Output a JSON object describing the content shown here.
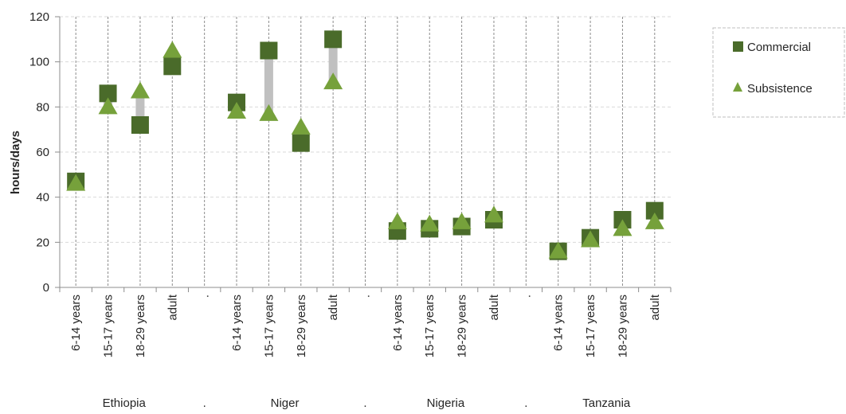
{
  "chart_data": {
    "type": "scatter",
    "ylabel": "hours/days",
    "ylim": [
      0,
      120
    ],
    "yticks": [
      0,
      20,
      40,
      60,
      80,
      100,
      120
    ],
    "grid": true,
    "legend_position": "right",
    "groups": [
      {
        "name": "Ethiopia",
        "categories": [
          "6-14 years",
          "15-17 years",
          "18-29 years",
          "adult"
        ]
      },
      {
        "name": "Niger",
        "categories": [
          "6-14 years",
          "15-17 years",
          "18-29 years",
          "adult"
        ]
      },
      {
        "name": "Nigeria",
        "categories": [
          "6-14 years",
          "15-17 years",
          "18-29 years",
          "adult"
        ]
      },
      {
        "name": "Tanzania",
        "categories": [
          "6-14 years",
          "15-17 years",
          "18-29 years",
          "adult"
        ]
      }
    ],
    "separator_label": ".",
    "series": [
      {
        "name": "Commercial",
        "marker": "square",
        "color": "#4a6b2a",
        "values": [
          47,
          86,
          72,
          98,
          82,
          105,
          64,
          110,
          25,
          26,
          27,
          30,
          16,
          22,
          30,
          34
        ]
      },
      {
        "name": "Subsistence",
        "marker": "triangle",
        "color": "#76a13b",
        "values": [
          46,
          80,
          87,
          105,
          78,
          77,
          71,
          91,
          29,
          28,
          29,
          32,
          16,
          21,
          26,
          29
        ]
      }
    ],
    "gap_bar_color": "#c0c0c0"
  }
}
